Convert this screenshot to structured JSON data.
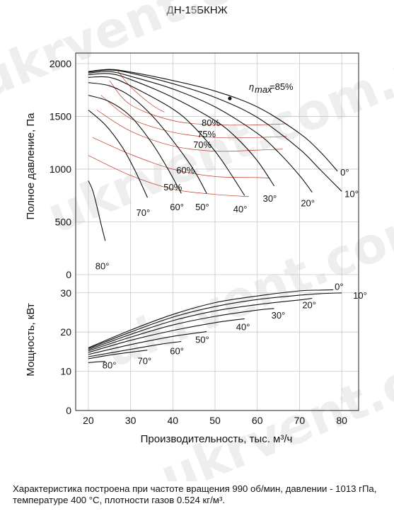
{
  "chart_data": {
    "title": "ДН-15БКНЖ",
    "xlabel": "Производительность, тыс. м³/ч",
    "watermark": "ukrvent.com.ua",
    "note": "Характеристика построена при частоте вращения 990 об/мин, давлении - 1013 гПа, температуре 400 °С, плотности газов 0.524 кг/м³.",
    "x_ticks": [
      20,
      30,
      40,
      50,
      60,
      70,
      80
    ],
    "xlim": [
      17,
      84
    ],
    "pressure": {
      "type": "line",
      "ylabel": "Полное давление, Па",
      "ylim": [
        0,
        2100
      ],
      "y_ticks": [
        0,
        500,
        1000,
        1500,
        2000
      ],
      "grid": true,
      "series": [
        {
          "name": "0°",
          "x": [
            20,
            25,
            30,
            40,
            50,
            60,
            70,
            75,
            79
          ],
          "y": [
            1925,
            1945,
            1920,
            1840,
            1740,
            1590,
            1340,
            1160,
            980
          ]
        },
        {
          "name": "10°",
          "x": [
            20,
            25,
            30,
            40,
            50,
            60,
            70,
            75,
            80
          ],
          "y": [
            1920,
            1940,
            1910,
            1810,
            1680,
            1490,
            1190,
            990,
            790
          ]
        },
        {
          "name": "20°",
          "x": [
            20,
            25,
            30,
            40,
            50,
            60,
            65,
            70,
            73
          ],
          "y": [
            1910,
            1925,
            1880,
            1760,
            1590,
            1340,
            1160,
            940,
            780
          ]
        },
        {
          "name": "30°",
          "x": [
            20,
            25,
            30,
            40,
            50,
            55,
            60,
            64
          ],
          "y": [
            1895,
            1905,
            1850,
            1680,
            1460,
            1300,
            1080,
            840
          ]
        },
        {
          "name": "40°",
          "x": [
            20,
            25,
            30,
            40,
            45,
            50,
            53,
            57
          ],
          "y": [
            1870,
            1870,
            1790,
            1570,
            1400,
            1170,
            1000,
            750
          ]
        },
        {
          "name": "50°",
          "x": [
            20,
            25,
            30,
            35,
            40,
            45,
            48
          ],
          "y": [
            1820,
            1790,
            1690,
            1510,
            1270,
            990,
            770
          ]
        },
        {
          "name": "60°",
          "x": [
            20,
            25,
            30,
            35,
            39,
            42
          ],
          "y": [
            1700,
            1640,
            1500,
            1250,
            990,
            770
          ]
        },
        {
          "name": "70°",
          "x": [
            20,
            24,
            28,
            31,
            34
          ],
          "y": [
            1560,
            1420,
            1210,
            990,
            730
          ]
        },
        {
          "name": "80°",
          "x": [
            20,
            21,
            22,
            23,
            24
          ],
          "y": [
            890,
            800,
            650,
            480,
            320
          ]
        }
      ],
      "efficiency": [
        {
          "name": "50%",
          "x": [
            20,
            30,
            40,
            50,
            58
          ],
          "y": [
            1130,
            940,
            810,
            760,
            740
          ]
        },
        {
          "name": "60%",
          "x": [
            21,
            30,
            40,
            50,
            60,
            63
          ],
          "y": [
            1300,
            1140,
            1000,
            930,
            920,
            915
          ]
        },
        {
          "name": "70%",
          "x": [
            22,
            30,
            40,
            50,
            60,
            66
          ],
          "y": [
            1560,
            1360,
            1220,
            1170,
            1180,
            1190
          ]
        },
        {
          "name": "75%",
          "x": [
            23,
            30,
            40,
            50,
            60,
            67
          ],
          "y": [
            1700,
            1480,
            1350,
            1300,
            1300,
            1310
          ]
        },
        {
          "name": "80%",
          "x": [
            25,
            30,
            40,
            50,
            60,
            67
          ],
          "y": [
            1840,
            1610,
            1460,
            1420,
            1420,
            1430
          ]
        },
        {
          "name": "85%",
          "x": [
            27,
            30,
            35,
            38
          ],
          "y": [
            1930,
            1780,
            1610,
            1540
          ]
        }
      ],
      "eta_max_label": "η",
      "eta_max_sub": "max",
      "eta_max_value": "=85%",
      "eta_max_point": {
        "x": 53.5,
        "y": 1670
      }
    },
    "power": {
      "type": "line",
      "ylabel": "Мощность, кВт",
      "ylim": [
        0,
        37
      ],
      "y_ticks": [
        0,
        10,
        20,
        30
      ],
      "grid": true,
      "series": [
        {
          "name": "0°",
          "x": [
            20,
            30,
            40,
            50,
            60,
            70,
            75,
            78
          ],
          "y": [
            16,
            20.5,
            24.5,
            27.5,
            29.2,
            30.5,
            30.7,
            30.8
          ]
        },
        {
          "name": "10°",
          "x": [
            20,
            30,
            40,
            50,
            60,
            70,
            75,
            80
          ],
          "y": [
            15.8,
            20,
            23.8,
            26.5,
            28.3,
            29.4,
            29.8,
            30
          ]
        },
        {
          "name": "20°",
          "x": [
            20,
            30,
            40,
            50,
            60,
            70,
            73
          ],
          "y": [
            15.5,
            19.4,
            22.9,
            25.4,
            27,
            28.2,
            28.6
          ]
        },
        {
          "name": "30°",
          "x": [
            20,
            30,
            40,
            50,
            60,
            64
          ],
          "y": [
            15.2,
            18.7,
            21.8,
            24,
            25.6,
            26
          ]
        },
        {
          "name": "40°",
          "x": [
            20,
            30,
            40,
            50,
            57
          ],
          "y": [
            14.8,
            17.9,
            20.4,
            22.4,
            23.4
          ]
        },
        {
          "name": "50°",
          "x": [
            20,
            30,
            40,
            48
          ],
          "y": [
            14.3,
            16.8,
            18.9,
            20.1
          ]
        },
        {
          "name": "60°",
          "x": [
            20,
            30,
            37,
            42
          ],
          "y": [
            13.7,
            15.6,
            16.9,
            17.6
          ]
        },
        {
          "name": "70°",
          "x": [
            20,
            26,
            31,
            34
          ],
          "y": [
            13.2,
            14.3,
            15,
            15.4
          ]
        },
        {
          "name": "80°",
          "x": [
            20,
            22,
            24
          ],
          "y": [
            12.2,
            12.4,
            12.5
          ]
        }
      ]
    }
  }
}
